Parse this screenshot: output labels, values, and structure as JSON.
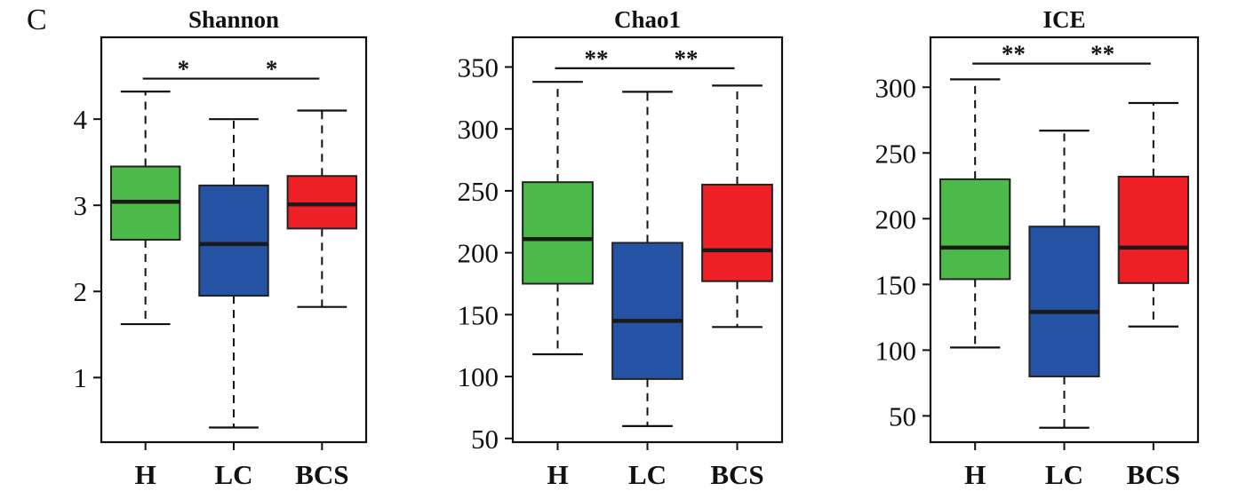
{
  "panel_label": "C",
  "colors": {
    "H": "#4cba48",
    "LC": "#2553a4",
    "BCS": "#ee2026",
    "axis": "#111111"
  },
  "chart_data": [
    {
      "type": "box",
      "title": "Shannon",
      "xlabel": "",
      "ylabel": "",
      "categories": [
        "H",
        "LC",
        "BCS"
      ],
      "ylim": [
        0.25,
        4.95
      ],
      "yticks": [
        1,
        2,
        3,
        4
      ],
      "boxes": [
        {
          "category": "H",
          "whisker_low": 1.62,
          "q1": 2.6,
          "median": 3.04,
          "q3": 3.45,
          "whisker_high": 4.32
        },
        {
          "category": "LC",
          "whisker_low": 0.42,
          "q1": 1.95,
          "median": 2.55,
          "q3": 3.23,
          "whisker_high": 4.0
        },
        {
          "category": "BCS",
          "whisker_low": 1.82,
          "q1": 2.73,
          "median": 3.01,
          "q3": 3.34,
          "whisker_high": 4.1
        }
      ],
      "significance": [
        {
          "from": "H",
          "to": "LC",
          "label": "*",
          "y": 4.47
        },
        {
          "from": "LC",
          "to": "BCS",
          "label": "*",
          "y": 4.47
        }
      ]
    },
    {
      "type": "box",
      "title": "Chao1",
      "xlabel": "",
      "ylabel": "",
      "categories": [
        "H",
        "LC",
        "BCS"
      ],
      "ylim": [
        47,
        374
      ],
      "yticks": [
        50,
        100,
        150,
        200,
        250,
        300,
        350
      ],
      "boxes": [
        {
          "category": "H",
          "whisker_low": 118,
          "q1": 175,
          "median": 211,
          "q3": 257,
          "whisker_high": 338
        },
        {
          "category": "LC",
          "whisker_low": 60,
          "q1": 98,
          "median": 145,
          "q3": 208,
          "whisker_high": 330
        },
        {
          "category": "BCS",
          "whisker_low": 140,
          "q1": 177,
          "median": 202,
          "q3": 255,
          "whisker_high": 335
        }
      ],
      "significance": [
        {
          "from": "H",
          "to": "LC",
          "label": "**",
          "y": 349
        },
        {
          "from": "LC",
          "to": "BCS",
          "label": "**",
          "y": 349
        }
      ]
    },
    {
      "type": "box",
      "title": "ICE",
      "xlabel": "",
      "ylabel": "",
      "categories": [
        "H",
        "LC",
        "BCS"
      ],
      "ylim": [
        30,
        338
      ],
      "yticks": [
        50,
        100,
        150,
        200,
        250,
        300
      ],
      "boxes": [
        {
          "category": "H",
          "whisker_low": 102,
          "q1": 154,
          "median": 178,
          "q3": 230,
          "whisker_high": 306
        },
        {
          "category": "LC",
          "whisker_low": 41,
          "q1": 80,
          "median": 129,
          "q3": 194,
          "whisker_high": 267
        },
        {
          "category": "BCS",
          "whisker_low": 118,
          "q1": 151,
          "median": 178,
          "q3": 232,
          "whisker_high": 288
        }
      ],
      "significance": [
        {
          "from": "H",
          "to": "LC",
          "label": "**",
          "y": 318
        },
        {
          "from": "LC",
          "to": "BCS",
          "label": "**",
          "y": 318
        }
      ]
    }
  ]
}
